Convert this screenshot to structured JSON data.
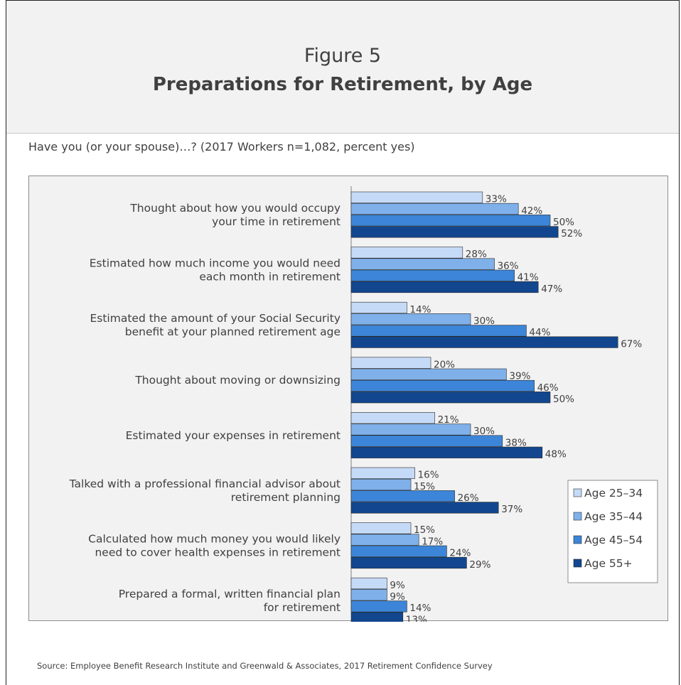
{
  "figure": {
    "number": "Figure 5",
    "title": "Preparations for Retirement, by Age",
    "question": "Have you (or your spouse)…? (2017 Workers n=1,082, percent yes)",
    "source": "Source:  Employee Benefit Research Institute and Greenwald & Associates, 2017 Retirement Confidence Survey"
  },
  "chart_data": {
    "type": "bar",
    "orientation": "horizontal",
    "title": "Preparations for Retirement, by Age",
    "categories": [
      [
        "Thought about how you would occupy",
        "your time in retirement"
      ],
      [
        "Estimated how much income you would need",
        "each month in retirement"
      ],
      [
        "Estimated the amount of your Social Security",
        "benefit at your planned retirement age"
      ],
      [
        "Thought about moving or downsizing"
      ],
      [
        "Estimated your expenses in retirement"
      ],
      [
        "Talked with a professional financial advisor about",
        "retirement planning"
      ],
      [
        "Calculated how much money you would likely",
        "need to cover health expenses in retirement"
      ],
      [
        "Prepared a formal, written financial plan",
        "for retirement"
      ]
    ],
    "series": [
      {
        "name": "Age 25–34",
        "color": "#c5daf6",
        "values": [
          33,
          28,
          14,
          20,
          21,
          16,
          15,
          9
        ]
      },
      {
        "name": "Age 35–44",
        "color": "#7fb0ea",
        "values": [
          42,
          36,
          30,
          39,
          30,
          15,
          17,
          9
        ]
      },
      {
        "name": "Age 45–54",
        "color": "#3c85d8",
        "values": [
          50,
          41,
          44,
          46,
          38,
          26,
          24,
          14
        ]
      },
      {
        "name": "Age 55+",
        "color": "#12478f",
        "values": [
          52,
          47,
          67,
          50,
          48,
          37,
          29,
          13
        ]
      }
    ],
    "value_suffix": "%",
    "xlim": [
      0,
      100
    ],
    "legend_position": "right",
    "grid": false
  }
}
